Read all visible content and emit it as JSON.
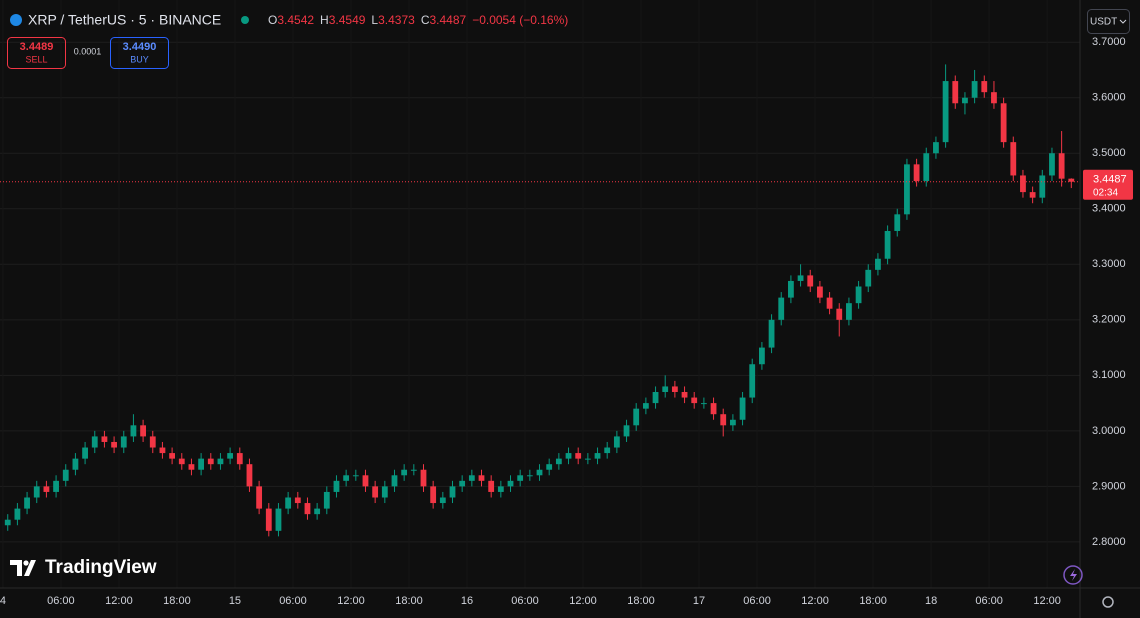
{
  "header": {
    "symbol": "XRP / TetherUS · 5 · BINANCE",
    "o_label": "O",
    "open": "3.4542",
    "h_label": "H",
    "high": "3.4549",
    "l_label": "L",
    "low": "3.4373",
    "c_label": "C",
    "close": "3.4487",
    "change": "−0.0054 (−0.16%)",
    "sell_price": "3.4489",
    "sell": "SELL",
    "spread": "0.0001",
    "buy_price": "3.4490",
    "buy": "BUY",
    "currency": "USDT",
    "logo": "TradingView"
  },
  "chart_data": {
    "type": "candlestick",
    "x": [
      0,
      1,
      2,
      3,
      4,
      5,
      6,
      7,
      8,
      9,
      10,
      11,
      12,
      13,
      14,
      15,
      16,
      17,
      18,
      19,
      20,
      21,
      22,
      23,
      24,
      25,
      26,
      27,
      28,
      29,
      30,
      31,
      32,
      33,
      34,
      35,
      36,
      37,
      38,
      39,
      40,
      41,
      42,
      43,
      44,
      45,
      46,
      47,
      48,
      49,
      50,
      51,
      52,
      53,
      54,
      55,
      56,
      57,
      58,
      59,
      60,
      61,
      62,
      63,
      64,
      65,
      66,
      67,
      68,
      69,
      70,
      71,
      72,
      73,
      74,
      75,
      76,
      77,
      78,
      79,
      80,
      81,
      82,
      83,
      84,
      85,
      86,
      87,
      88,
      89,
      90,
      91,
      92,
      93,
      94,
      95,
      96,
      97,
      98,
      99,
      100,
      101,
      102,
      103,
      104,
      105,
      106,
      107,
      108,
      109,
      110
    ],
    "open": [
      2.83,
      2.84,
      2.86,
      2.88,
      2.9,
      2.89,
      2.91,
      2.93,
      2.95,
      2.97,
      2.99,
      2.98,
      2.97,
      2.99,
      3.01,
      2.99,
      2.97,
      2.96,
      2.95,
      2.94,
      2.93,
      2.95,
      2.94,
      2.95,
      2.96,
      2.94,
      2.9,
      2.86,
      2.82,
      2.86,
      2.88,
      2.87,
      2.85,
      2.86,
      2.89,
      2.91,
      2.92,
      2.92,
      2.9,
      2.88,
      2.9,
      2.92,
      2.93,
      2.93,
      2.9,
      2.87,
      2.88,
      2.9,
      2.91,
      2.92,
      2.91,
      2.89,
      2.9,
      2.91,
      2.92,
      2.92,
      2.93,
      2.94,
      2.95,
      2.96,
      2.95,
      2.95,
      2.96,
      2.97,
      2.99,
      3.01,
      3.04,
      3.05,
      3.07,
      3.08,
      3.07,
      3.06,
      3.05,
      3.05,
      3.03,
      3.01,
      3.02,
      3.06,
      3.12,
      3.15,
      3.2,
      3.24,
      3.27,
      3.28,
      3.26,
      3.24,
      3.22,
      3.2,
      3.23,
      3.26,
      3.29,
      3.31,
      3.36,
      3.39,
      3.48,
      3.45,
      3.5,
      3.52,
      3.63,
      3.59,
      3.6,
      3.63,
      3.61,
      3.59,
      3.52,
      3.46,
      3.43,
      3.42,
      3.46,
      3.5,
      3.4542
    ],
    "high": [
      2.85,
      2.87,
      2.89,
      2.91,
      2.91,
      2.92,
      2.94,
      2.96,
      2.98,
      3.0,
      3.0,
      2.99,
      3.0,
      3.03,
      3.02,
      3.0,
      2.98,
      2.97,
      2.96,
      2.95,
      2.96,
      2.96,
      2.96,
      2.97,
      2.97,
      2.95,
      2.91,
      2.87,
      2.87,
      2.89,
      2.89,
      2.88,
      2.87,
      2.9,
      2.92,
      2.93,
      2.93,
      2.93,
      2.91,
      2.91,
      2.93,
      2.94,
      2.94,
      2.94,
      2.91,
      2.89,
      2.91,
      2.92,
      2.93,
      2.93,
      2.92,
      2.91,
      2.92,
      2.93,
      2.93,
      2.94,
      2.95,
      2.96,
      2.97,
      2.97,
      2.96,
      2.97,
      2.98,
      3.0,
      3.02,
      3.05,
      3.06,
      3.08,
      3.1,
      3.09,
      3.08,
      3.07,
      3.06,
      3.06,
      3.04,
      3.03,
      3.07,
      3.13,
      3.16,
      3.21,
      3.25,
      3.28,
      3.3,
      3.29,
      3.27,
      3.25,
      3.23,
      3.24,
      3.27,
      3.3,
      3.32,
      3.37,
      3.4,
      3.49,
      3.49,
      3.51,
      3.53,
      3.66,
      3.64,
      3.61,
      3.65,
      3.64,
      3.63,
      3.6,
      3.53,
      3.47,
      3.44,
      3.47,
      3.51,
      3.54,
      3.4549
    ],
    "low": [
      2.82,
      2.83,
      2.85,
      2.87,
      2.88,
      2.88,
      2.9,
      2.92,
      2.94,
      2.96,
      2.97,
      2.96,
      2.96,
      2.98,
      2.98,
      2.96,
      2.95,
      2.94,
      2.93,
      2.92,
      2.92,
      2.93,
      2.93,
      2.94,
      2.93,
      2.89,
      2.85,
      2.81,
      2.81,
      2.85,
      2.86,
      2.84,
      2.84,
      2.85,
      2.88,
      2.9,
      2.91,
      2.89,
      2.87,
      2.87,
      2.89,
      2.91,
      2.92,
      2.89,
      2.86,
      2.86,
      2.87,
      2.89,
      2.9,
      2.9,
      2.88,
      2.88,
      2.89,
      2.9,
      2.91,
      2.91,
      2.92,
      2.93,
      2.94,
      2.94,
      2.94,
      2.94,
      2.95,
      2.96,
      2.98,
      3.0,
      3.03,
      3.04,
      3.06,
      3.06,
      3.05,
      3.04,
      3.04,
      3.02,
      2.99,
      3.0,
      3.01,
      3.05,
      3.11,
      3.14,
      3.19,
      3.23,
      3.26,
      3.25,
      3.23,
      3.21,
      3.17,
      3.19,
      3.22,
      3.25,
      3.28,
      3.3,
      3.35,
      3.38,
      3.44,
      3.44,
      3.49,
      3.51,
      3.58,
      3.57,
      3.59,
      3.6,
      3.58,
      3.51,
      3.45,
      3.42,
      3.41,
      3.41,
      3.45,
      3.44,
      3.4373
    ],
    "close": [
      2.84,
      2.86,
      2.88,
      2.9,
      2.89,
      2.91,
      2.93,
      2.95,
      2.97,
      2.99,
      2.98,
      2.97,
      2.99,
      3.01,
      2.99,
      2.97,
      2.96,
      2.95,
      2.94,
      2.93,
      2.95,
      2.94,
      2.95,
      2.96,
      2.94,
      2.9,
      2.86,
      2.82,
      2.86,
      2.88,
      2.87,
      2.85,
      2.86,
      2.89,
      2.91,
      2.92,
      2.92,
      2.9,
      2.88,
      2.9,
      2.92,
      2.93,
      2.93,
      2.9,
      2.87,
      2.88,
      2.9,
      2.91,
      2.92,
      2.91,
      2.89,
      2.9,
      2.91,
      2.92,
      2.92,
      2.93,
      2.94,
      2.95,
      2.96,
      2.95,
      2.95,
      2.96,
      2.97,
      2.99,
      3.01,
      3.04,
      3.05,
      3.07,
      3.08,
      3.07,
      3.06,
      3.05,
      3.05,
      3.03,
      3.01,
      3.02,
      3.06,
      3.12,
      3.15,
      3.2,
      3.24,
      3.27,
      3.28,
      3.26,
      3.24,
      3.22,
      3.2,
      3.23,
      3.26,
      3.29,
      3.31,
      3.36,
      3.39,
      3.48,
      3.45,
      3.5,
      3.52,
      3.63,
      3.59,
      3.6,
      3.63,
      3.61,
      3.59,
      3.52,
      3.46,
      3.43,
      3.42,
      3.46,
      3.5,
      3.4542,
      3.4487
    ],
    "up_color": "#089981",
    "down_color": "#f23645",
    "xlim": [
      -0.3,
      111.4
    ],
    "ylim": [
      2.717,
      3.776
    ],
    "xticks": [
      {
        "value": 0,
        "label": "4"
      },
      {
        "value": 6,
        "label": "06:00"
      },
      {
        "value": 12,
        "label": "12:00"
      },
      {
        "value": 18,
        "label": "18:00"
      },
      {
        "value": 24,
        "label": "15"
      },
      {
        "value": 30,
        "label": "06:00"
      },
      {
        "value": 36,
        "label": "12:00"
      },
      {
        "value": 42,
        "label": "18:00"
      },
      {
        "value": 48,
        "label": "16"
      },
      {
        "value": 54,
        "label": "06:00"
      },
      {
        "value": 60,
        "label": "12:00"
      },
      {
        "value": 66,
        "label": "18:00"
      },
      {
        "value": 72,
        "label": "17"
      },
      {
        "value": 78,
        "label": "06:00"
      },
      {
        "value": 84,
        "label": "12:00"
      },
      {
        "value": 90,
        "label": "18:00"
      },
      {
        "value": 96,
        "label": "18"
      },
      {
        "value": 102,
        "label": "06:00"
      },
      {
        "value": 108,
        "label": "12:00"
      }
    ],
    "yticks": [
      {
        "value": 2.8,
        "label": "2.8000"
      },
      {
        "value": 2.9,
        "label": "2.9000"
      },
      {
        "value": 3.0,
        "label": "3.0000"
      },
      {
        "value": 3.1,
        "label": "3.1000"
      },
      {
        "value": 3.2,
        "label": "3.2000"
      },
      {
        "value": 3.3,
        "label": "3.3000"
      },
      {
        "value": 3.4,
        "label": "3.4000"
      },
      {
        "value": 3.5,
        "label": "3.5000"
      },
      {
        "value": 3.6,
        "label": "3.6000"
      },
      {
        "value": 3.7,
        "label": "3.7000"
      }
    ],
    "grid": true,
    "price_tag": {
      "value": 3.4487,
      "label": "3.4487",
      "countdown": "02:34"
    }
  }
}
